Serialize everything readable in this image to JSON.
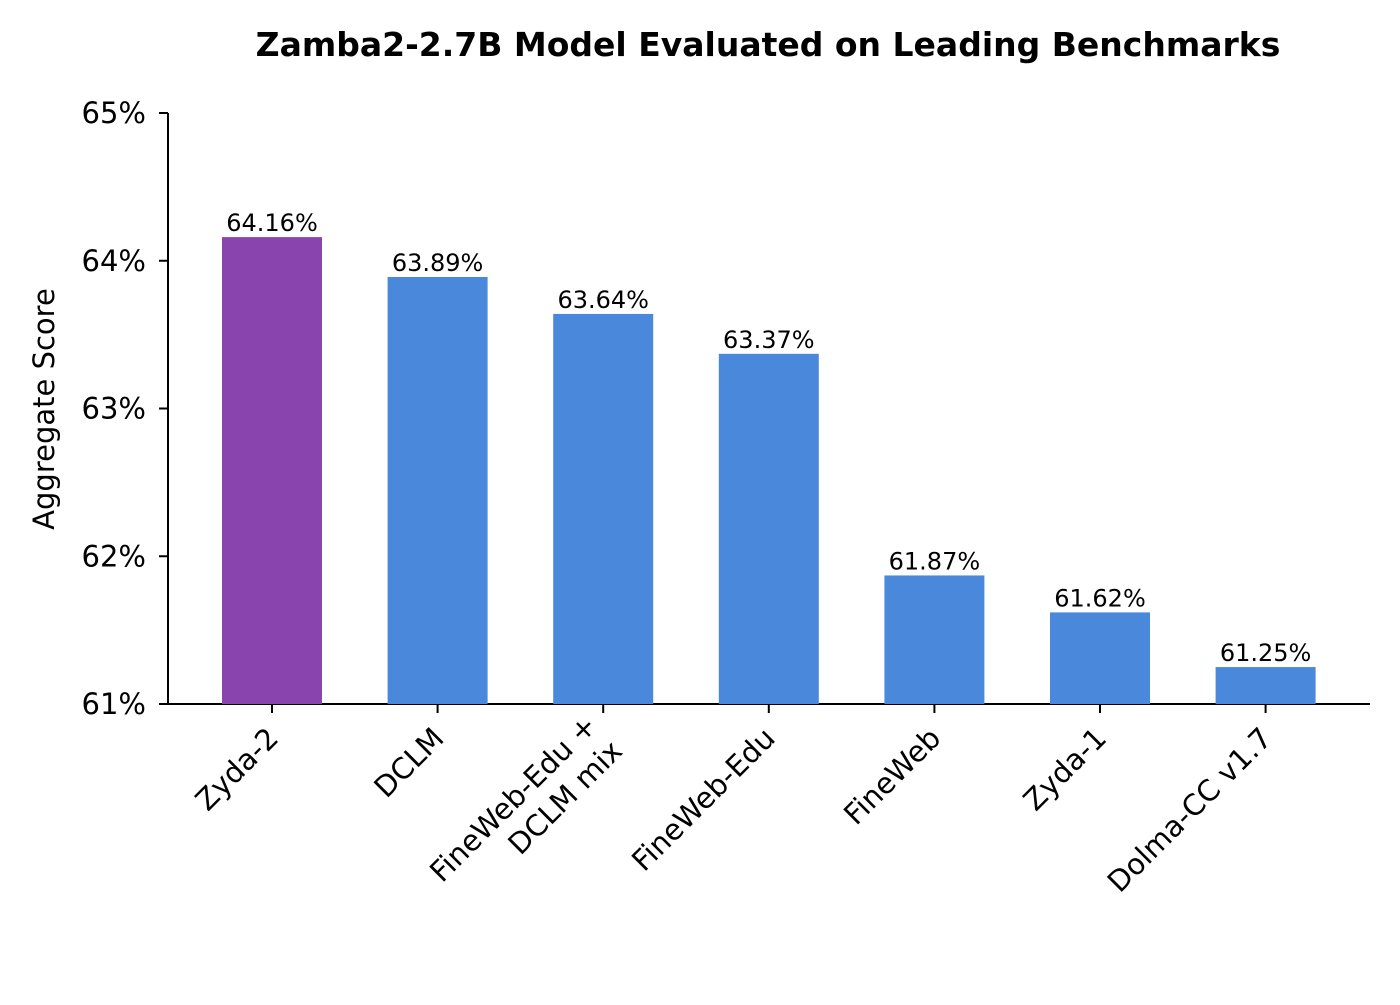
{
  "chart_data": {
    "type": "bar",
    "title": "Zamba2-2.7B Model Evaluated on Leading Benchmarks",
    "xlabel": "",
    "ylabel": "Aggregate Score",
    "ylim": [
      61,
      65
    ],
    "yticks": [
      61,
      62,
      63,
      64,
      65
    ],
    "ytick_suffix": "%",
    "grid": false,
    "legend": "none",
    "categories": [
      [
        "Zyda-2"
      ],
      [
        "DCLM"
      ],
      [
        "FineWeb-Edu +",
        "DCLM mix"
      ],
      [
        "FineWeb-Edu"
      ],
      [
        "FineWeb"
      ],
      [
        "Zyda-1"
      ],
      [
        "Dolma-CC v1.7"
      ]
    ],
    "values": [
      64.16,
      63.89,
      63.64,
      63.37,
      61.87,
      61.62,
      61.25
    ],
    "value_labels": [
      "64.16%",
      "63.89%",
      "63.64%",
      "63.37%",
      "61.87%",
      "61.62%",
      "61.25%"
    ],
    "colors": [
      "#8A44AD",
      "#4A88DB",
      "#4A88DB",
      "#4A88DB",
      "#4A88DB",
      "#4A88DB",
      "#4A88DB"
    ]
  }
}
